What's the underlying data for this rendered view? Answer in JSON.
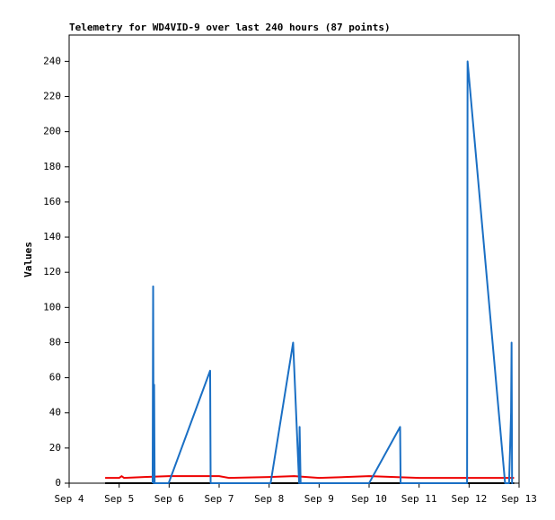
{
  "chart_data": {
    "type": "line",
    "title": "Telemetry for WD4VID-9 over last 240 hours (87 points)",
    "y_label": "Values",
    "xlim": [
      0,
      9
    ],
    "xticks": [
      {
        "value": 0,
        "label": "Sep 4"
      },
      {
        "value": 1,
        "label": "Sep 5"
      },
      {
        "value": 2,
        "label": "Sep 6"
      },
      {
        "value": 3,
        "label": "Sep 7"
      },
      {
        "value": 4,
        "label": "Sep 8"
      },
      {
        "value": 5,
        "label": "Sep 9"
      },
      {
        "value": 6,
        "label": "Sep 10"
      },
      {
        "value": 7,
        "label": "Sep 11"
      },
      {
        "value": 8,
        "label": "Sep 12"
      },
      {
        "value": 9,
        "label": "Sep 13"
      }
    ],
    "ylim": [
      0,
      255
    ],
    "yticks": [
      0,
      20,
      40,
      60,
      80,
      100,
      120,
      140,
      160,
      180,
      200,
      220,
      240
    ],
    "series": [
      {
        "color": "#000000",
        "x": [
          0.72,
          8.9
        ],
        "values": [
          0,
          0
        ]
      },
      {
        "color": "#ee0000",
        "x": [
          0.72,
          1.0,
          1.05,
          1.1,
          1.5,
          2.0,
          3.0,
          3.2,
          4.0,
          4.5,
          5.0,
          6.0,
          6.5,
          7.0,
          8.0,
          8.5,
          8.9
        ],
        "values": [
          3,
          3,
          4,
          3,
          3.5,
          4,
          4,
          3,
          3.5,
          4,
          3,
          4,
          3.5,
          3,
          3,
          3,
          3
        ]
      },
      {
        "color": "#1a6fc4",
        "x": [
          1.67,
          1.68,
          1.69,
          1.7,
          1.71,
          1.99,
          2.82,
          2.83,
          4.03,
          4.48,
          4.6,
          4.61,
          4.63,
          6.0,
          6.62,
          6.63,
          7.96,
          7.97,
          8.72,
          8.8,
          8.84,
          8.85,
          8.86,
          8.88
        ],
        "values": [
          0,
          112,
          0,
          56,
          0,
          0,
          64,
          0,
          0,
          80,
          0,
          32,
          0,
          0,
          32,
          0,
          0,
          240,
          0,
          0,
          40,
          80,
          0,
          0
        ]
      }
    ]
  }
}
